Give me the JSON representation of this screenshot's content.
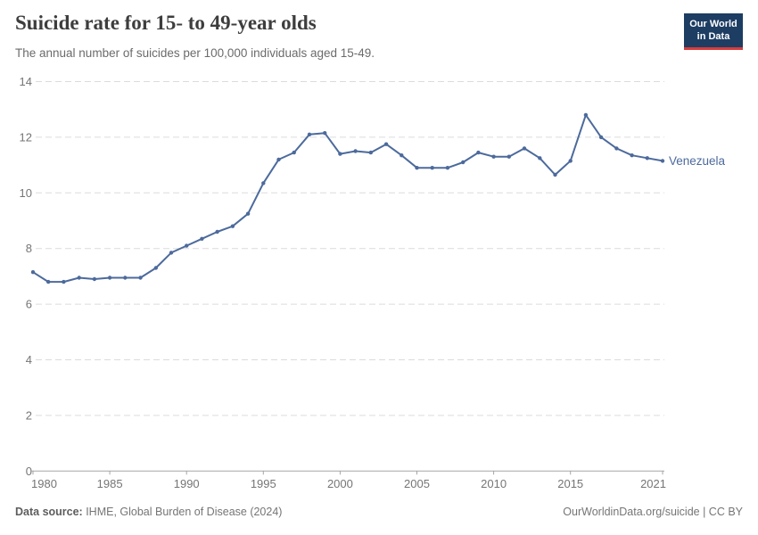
{
  "header": {
    "title": "Suicide rate for 15- to 49-year olds",
    "subtitle": "The annual number of suicides per 100,000 individuals aged 15-49.",
    "logo": {
      "line1": "Our World",
      "line2": "in Data",
      "bg_color": "#1d3d63",
      "bar_color": "#d73c3c"
    }
  },
  "chart_data": {
    "type": "line",
    "title": "Suicide rate for 15- to 49-year olds",
    "subtitle": "The annual number of suicides per 100,000 individuals aged 15-49.",
    "xlabel": "",
    "ylabel": "",
    "ylim": [
      0,
      14
    ],
    "yticks": [
      0,
      2,
      4,
      6,
      8,
      10,
      12,
      14
    ],
    "xticks": [
      1980,
      1985,
      1990,
      1995,
      2000,
      2005,
      2010,
      2015,
      2021
    ],
    "grid": "horizontal-dashed",
    "legend_position": "end-of-line",
    "axis_color": "#a5a5a5",
    "grid_color": "#dcdcdc",
    "tick_label_color": "#757575",
    "series": [
      {
        "name": "Venezuela",
        "color": "#4c6a9c",
        "x": [
          1980,
          1981,
          1982,
          1983,
          1984,
          1985,
          1986,
          1987,
          1988,
          1989,
          1990,
          1991,
          1992,
          1993,
          1994,
          1995,
          1996,
          1997,
          1998,
          1999,
          2000,
          2001,
          2002,
          2003,
          2004,
          2005,
          2006,
          2007,
          2008,
          2009,
          2010,
          2011,
          2012,
          2013,
          2014,
          2015,
          2016,
          2017,
          2018,
          2019,
          2020,
          2021
        ],
        "values": [
          7.15,
          6.8,
          6.8,
          6.95,
          6.9,
          6.95,
          6.95,
          6.95,
          7.3,
          7.85,
          8.1,
          8.35,
          8.6,
          8.8,
          9.25,
          10.35,
          11.2,
          11.45,
          12.1,
          12.15,
          11.4,
          11.5,
          11.45,
          11.75,
          11.35,
          10.9,
          10.9,
          10.9,
          11.1,
          11.45,
          11.3,
          11.3,
          11.6,
          11.25,
          10.65,
          11.15,
          12.8,
          12.0,
          11.6,
          11.35,
          11.25,
          11.15
        ]
      }
    ]
  },
  "footer": {
    "source_label": "Data source:",
    "source_text": " IHME, Global Burden of Disease (2024)",
    "right_text": "OurWorldinData.org/suicide | CC BY"
  }
}
